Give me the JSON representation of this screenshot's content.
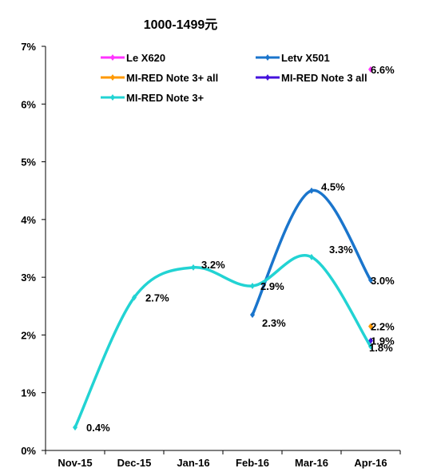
{
  "chart_data": {
    "type": "line",
    "title": "1000-1499元",
    "xlabel": "",
    "ylabel": "",
    "categories": [
      "Nov-15",
      "Dec-15",
      "Jan-16",
      "Feb-16",
      "Mar-16",
      "Apr-16"
    ],
    "ylim": [
      0,
      7
    ],
    "yticks": [
      "0%",
      "1%",
      "2%",
      "3%",
      "4%",
      "5%",
      "6%",
      "7%"
    ],
    "grid": false,
    "legend_position": "top",
    "series": [
      {
        "name": "Le X620",
        "color": "#ff33ff",
        "values": [
          null,
          null,
          null,
          null,
          null,
          6.6
        ],
        "labels": [
          null,
          null,
          null,
          null,
          null,
          "6.6%"
        ]
      },
      {
        "name": "Letv X501",
        "color": "#1a75cc",
        "values": [
          null,
          null,
          null,
          2.35,
          4.5,
          2.95
        ],
        "labels": [
          null,
          null,
          null,
          "2.3%",
          "4.5%",
          "3.0%"
        ]
      },
      {
        "name": "MI-RED Note 3+ all",
        "color": "#ff9900",
        "values": [
          null,
          null,
          null,
          null,
          null,
          2.15
        ],
        "labels": [
          null,
          null,
          null,
          null,
          null,
          "2.2%"
        ]
      },
      {
        "name": "MI-RED Note 3 all",
        "color": "#4411dd",
        "values": [
          null,
          null,
          null,
          null,
          null,
          1.9
        ],
        "labels": [
          null,
          null,
          null,
          null,
          null,
          "1.9%"
        ]
      },
      {
        "name": "MI-RED Note 3+",
        "color": "#22d3d3",
        "values": [
          0.4,
          2.65,
          3.17,
          2.85,
          3.35,
          1.8
        ],
        "labels": [
          "0.4%",
          "2.7%",
          "3.2%",
          "2.9%",
          "3.3%",
          "1.8%"
        ]
      }
    ]
  }
}
